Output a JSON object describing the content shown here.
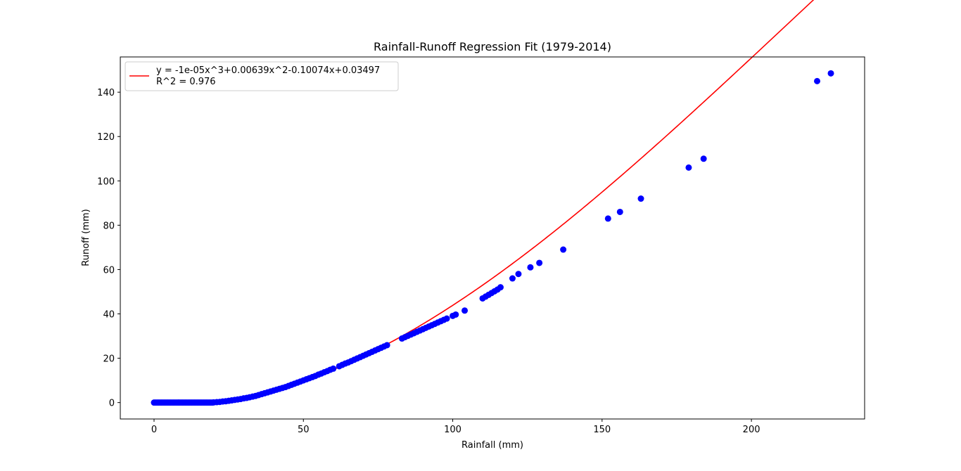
{
  "chart_data": {
    "type": "scatter",
    "title": "Rainfall-Runoff Regression Fit (1979-2014)",
    "xlabel": "Rainfall (mm)",
    "ylabel": "Runoff (mm)",
    "xlim": [
      -11.3,
      237.9
    ],
    "ylim": [
      -7.4,
      155.9
    ],
    "xticks": [
      0,
      50,
      100,
      150,
      200
    ],
    "yticks": [
      0,
      20,
      40,
      60,
      80,
      100,
      120,
      140
    ],
    "grid": false,
    "legend_position": "top-left",
    "legend": {
      "line1": "y = -1e-05x^3+0.00639x^2-0.10074x+0.03497",
      "line2": "R^2 = 0.976"
    },
    "fit": {
      "name": "y = -1e-05x^3+0.00639x^2-0.10074x+0.03497",
      "coefficients": [
        -1e-05,
        0.00639,
        -0.10074,
        0.03497
      ],
      "x_range": [
        0,
        226.6
      ],
      "color": "#ff0000"
    },
    "series": [
      {
        "color": "#0000ff",
        "points": [
          [
            0,
            0
          ],
          [
            0.5,
            0
          ],
          [
            1,
            0
          ],
          [
            1.5,
            0
          ],
          [
            2,
            0
          ],
          [
            2.5,
            0
          ],
          [
            3,
            0
          ],
          [
            3.5,
            0
          ],
          [
            4,
            0
          ],
          [
            4.5,
            0
          ],
          [
            5,
            0
          ],
          [
            5.5,
            0
          ],
          [
            6,
            0
          ],
          [
            6.5,
            0
          ],
          [
            7,
            0
          ],
          [
            7.5,
            0
          ],
          [
            8,
            0
          ],
          [
            8.5,
            0
          ],
          [
            9,
            0
          ],
          [
            9.5,
            0
          ],
          [
            10,
            0
          ],
          [
            10.5,
            0
          ],
          [
            11,
            0
          ],
          [
            11.5,
            0
          ],
          [
            12,
            0
          ],
          [
            12.5,
            0
          ],
          [
            13,
            0
          ],
          [
            13.5,
            0
          ],
          [
            14,
            0
          ],
          [
            14.5,
            0
          ],
          [
            15,
            0
          ],
          [
            15.5,
            0
          ],
          [
            16,
            0
          ],
          [
            16.5,
            0
          ],
          [
            17,
            0
          ],
          [
            17.5,
            0
          ],
          [
            18,
            0
          ],
          [
            18.5,
            0
          ],
          [
            19,
            0
          ],
          [
            19.5,
            0
          ],
          [
            20,
            0.1
          ],
          [
            21,
            0.2
          ],
          [
            22,
            0.3
          ],
          [
            23,
            0.5
          ],
          [
            24,
            0.6
          ],
          [
            25,
            0.8
          ],
          [
            26,
            1.0
          ],
          [
            27,
            1.2
          ],
          [
            28,
            1.4
          ],
          [
            29,
            1.6
          ],
          [
            30,
            1.9
          ],
          [
            31,
            2.1
          ],
          [
            32,
            2.4
          ],
          [
            33,
            2.7
          ],
          [
            34,
            3.0
          ],
          [
            35,
            3.4
          ],
          [
            36,
            3.8
          ],
          [
            37,
            4.2
          ],
          [
            38,
            4.6
          ],
          [
            39,
            5.0
          ],
          [
            40,
            5.4
          ],
          [
            41,
            5.8
          ],
          [
            42,
            6.2
          ],
          [
            43,
            6.6
          ],
          [
            44,
            7.0
          ],
          [
            45,
            7.5
          ],
          [
            46,
            8.0
          ],
          [
            47,
            8.5
          ],
          [
            48,
            9.0
          ],
          [
            49,
            9.5
          ],
          [
            50,
            10.0
          ],
          [
            51,
            10.5
          ],
          [
            52,
            11.0
          ],
          [
            53,
            11.5
          ],
          [
            54,
            12.0
          ],
          [
            55,
            12.6
          ],
          [
            56,
            13.1
          ],
          [
            57,
            13.7
          ],
          [
            58,
            14.2
          ],
          [
            59,
            14.8
          ],
          [
            60,
            15.3
          ],
          [
            62,
            16.4
          ],
          [
            63,
            17.0
          ],
          [
            64,
            17.6
          ],
          [
            65,
            18.1
          ],
          [
            66,
            18.7
          ],
          [
            67,
            19.3
          ],
          [
            68,
            19.9
          ],
          [
            69,
            20.5
          ],
          [
            70,
            21.1
          ],
          [
            71,
            21.7
          ],
          [
            72,
            22.3
          ],
          [
            73,
            22.9
          ],
          [
            74,
            23.5
          ],
          [
            75,
            24.1
          ],
          [
            76,
            24.7
          ],
          [
            77,
            25.3
          ],
          [
            78,
            25.9
          ],
          [
            83,
            28.9
          ],
          [
            84,
            29.5
          ],
          [
            85,
            30.1
          ],
          [
            86,
            30.7
          ],
          [
            87,
            31.3
          ],
          [
            88,
            31.9
          ],
          [
            89,
            32.5
          ],
          [
            90,
            33.1
          ],
          [
            91,
            33.7
          ],
          [
            92,
            34.3
          ],
          [
            93,
            34.9
          ],
          [
            94,
            35.5
          ],
          [
            95,
            36.1
          ],
          [
            96,
            36.7
          ],
          [
            97,
            37.3
          ],
          [
            98,
            37.9
          ],
          [
            100,
            39.1
          ],
          [
            101,
            39.7
          ],
          [
            104,
            41.5
          ],
          [
            110,
            47.0
          ],
          [
            111,
            47.8
          ],
          [
            112,
            48.6
          ],
          [
            113,
            49.4
          ],
          [
            114,
            50.2
          ],
          [
            115,
            51.0
          ],
          [
            116,
            52.0
          ],
          [
            120,
            56.0
          ],
          [
            122,
            58.0
          ],
          [
            126,
            61.0
          ],
          [
            129,
            63.0
          ],
          [
            137,
            69.0
          ],
          [
            152,
            83.0
          ],
          [
            156,
            86.0
          ],
          [
            163,
            92.0
          ],
          [
            179,
            106.0
          ],
          [
            184,
            110.0
          ],
          [
            222,
            145.0
          ],
          [
            226.6,
            148.5
          ]
        ]
      }
    ]
  }
}
